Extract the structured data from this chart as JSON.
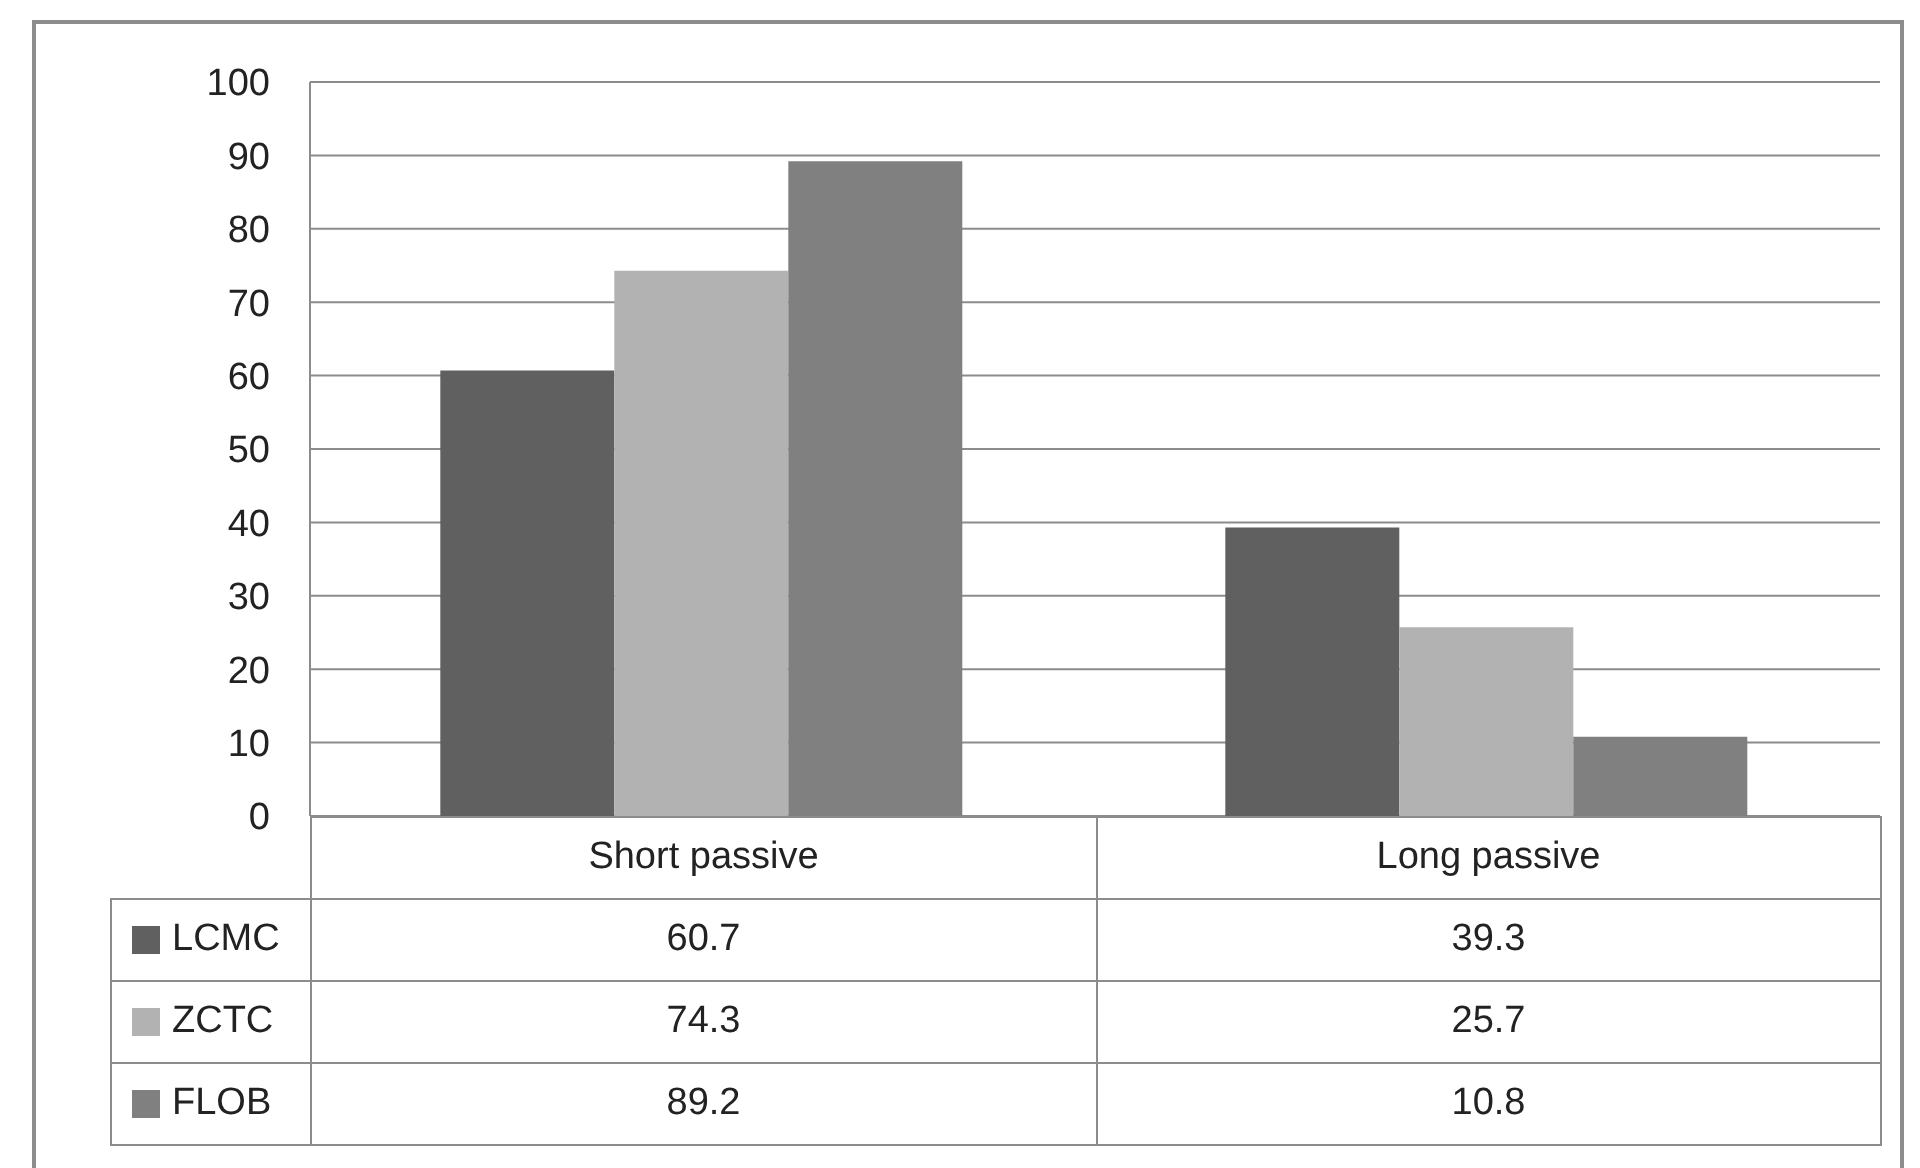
{
  "chart_data": {
    "type": "bar",
    "categories": [
      "Short passive",
      "Long passive"
    ],
    "series": [
      {
        "name": "LCMC",
        "color": "#606060",
        "values": [
          60.7,
          39.3
        ]
      },
      {
        "name": "ZCTC",
        "color": "#b2b2b2",
        "values": [
          74.3,
          25.7
        ]
      },
      {
        "name": "FLOB",
        "color": "#808080",
        "values": [
          89.2,
          10.8
        ]
      }
    ],
    "ylim": [
      0,
      100
    ],
    "yticks": [
      0,
      10,
      20,
      30,
      40,
      50,
      60,
      70,
      80,
      90,
      100
    ],
    "grid": "y",
    "legend": "bottom",
    "data_labels": true
  }
}
